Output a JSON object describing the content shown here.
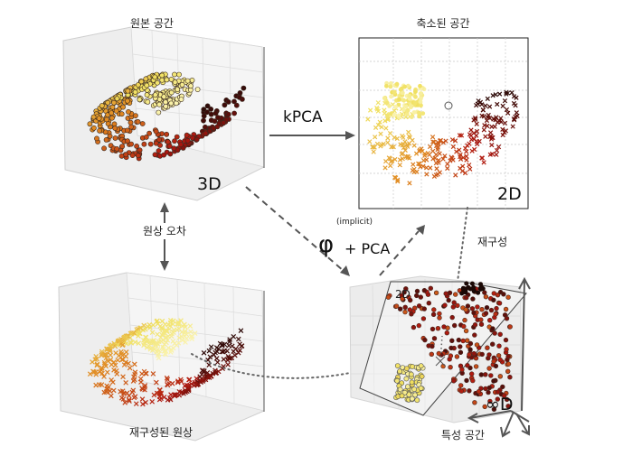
{
  "labels": {
    "original_space": "원본 공간",
    "reduced_space": "축소된 공간",
    "kpca": "kPCA",
    "implicit": "(implicit)",
    "phi": "φ",
    "plus_pca": "+ PCA",
    "dim_3d": "3D",
    "dim_2d_reduced": "2D",
    "dim_2d_plane": "2D",
    "reconstruction_error": "원상 오차",
    "reconstruction": "재구성",
    "reconstructed_preimage": "재구성된 원상",
    "feature_space": "특성 공간",
    "infinite_d": "∞D"
  },
  "colors": {
    "dark": "#2a0a08",
    "red": "#b01810",
    "orange": "#e08820",
    "yellow": "#f0e060",
    "pale_yellow": "#faf3b0",
    "arrow": "#555555"
  }
}
